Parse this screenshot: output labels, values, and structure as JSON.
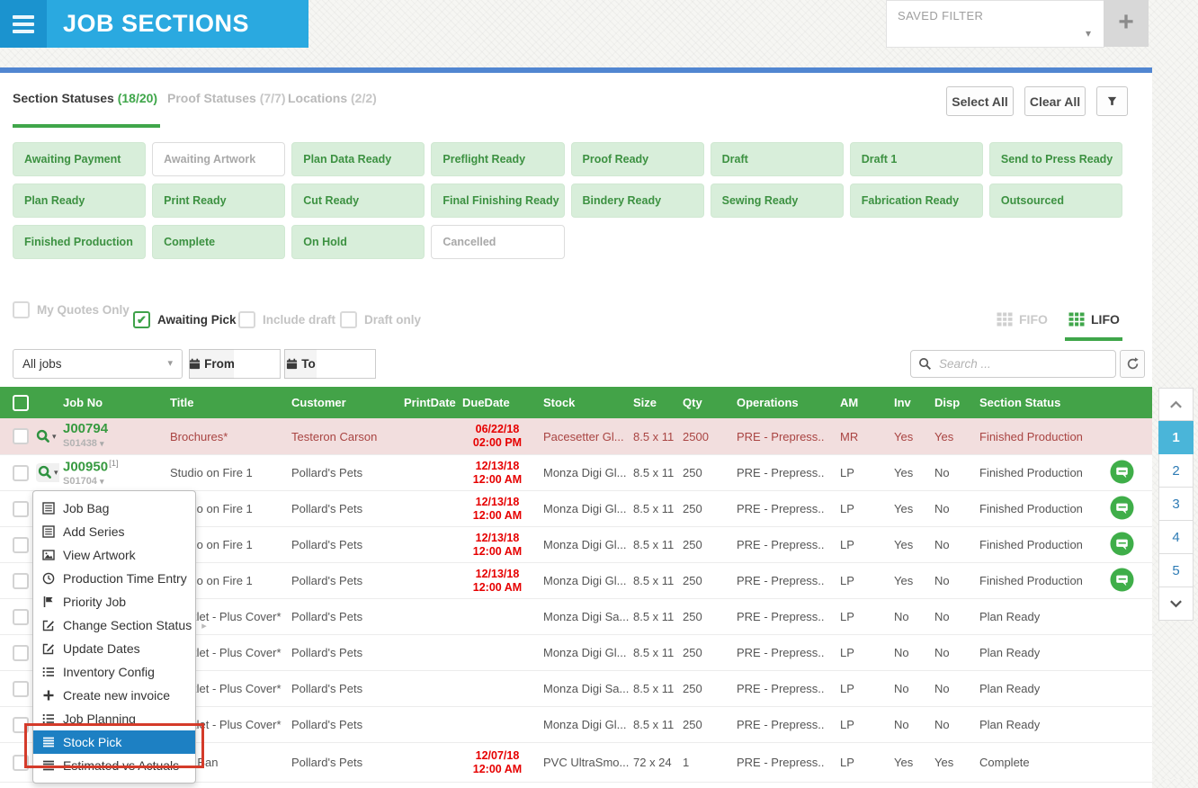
{
  "header": {
    "title": "JOB SECTIONS",
    "saved_filter_label": "SAVED FILTER",
    "add_filter": "+"
  },
  "filter_panel": {
    "tabs": [
      {
        "label": "Section Statuses",
        "count": "(18/20)",
        "active": true
      },
      {
        "label": "Proof Statuses",
        "count": "(7/7)",
        "active": false
      },
      {
        "label": "Locations",
        "count": "(2/2)",
        "active": false
      }
    ],
    "select_all": "Select All",
    "clear_all": "Clear All",
    "chips": [
      {
        "label": "Awaiting Payment",
        "selected": true
      },
      {
        "label": "Awaiting Artwork",
        "selected": false
      },
      {
        "label": "Plan Data Ready",
        "selected": true
      },
      {
        "label": "Preflight Ready",
        "selected": true
      },
      {
        "label": "Proof Ready",
        "selected": true
      },
      {
        "label": "Draft",
        "selected": true
      },
      {
        "label": "Draft 1",
        "selected": true
      },
      {
        "label": "Send to Press Ready",
        "selected": true
      },
      {
        "label": "Plan Ready",
        "selected": true
      },
      {
        "label": "Print Ready",
        "selected": true
      },
      {
        "label": "Cut Ready",
        "selected": true
      },
      {
        "label": "Final Finishing Ready",
        "selected": true
      },
      {
        "label": "Bindery Ready",
        "selected": true
      },
      {
        "label": "Sewing Ready",
        "selected": true
      },
      {
        "label": "Fabrication Ready",
        "selected": true
      },
      {
        "label": "Outsourced",
        "selected": true
      },
      {
        "label": "Finished Production",
        "selected": true
      },
      {
        "label": "Complete",
        "selected": true
      },
      {
        "label": "On Hold",
        "selected": true
      },
      {
        "label": "Cancelled",
        "selected": false
      }
    ]
  },
  "options": {
    "checkboxes": [
      {
        "label": "My Quotes Only",
        "checked": false
      },
      {
        "label": "Awaiting Pick",
        "checked": true
      },
      {
        "label": "Include draft",
        "checked": false
      },
      {
        "label": "Draft only",
        "checked": false
      }
    ],
    "order": [
      {
        "label": "FIFO",
        "active": false
      },
      {
        "label": "LIFO",
        "active": true
      }
    ]
  },
  "filter_bar": {
    "jobs_select": "All jobs",
    "from_label": "From",
    "to_label": "To",
    "search_placeholder": "Search ..."
  },
  "table": {
    "columns": [
      "",
      "",
      "Job No",
      "Title",
      "Customer",
      "PrintDate",
      "DueDate",
      "Stock",
      "Size",
      "Qty",
      "Operations",
      "AM",
      "Inv",
      "Disp",
      "Section Status",
      ""
    ],
    "rows": [
      {
        "show_job": true,
        "job_no": "J00794",
        "badge": "",
        "section_no": "S01438",
        "title": "Brochures*",
        "customer": "Testeron Carson",
        "print_date": "",
        "due": [
          "06/22/18",
          "02:00 PM"
        ],
        "stock": "Pacesetter Gl...",
        "size": "8.5 x 11",
        "qty": "2500",
        "operations": "PRE - Prepress..",
        "am": "MR",
        "inv": "Yes",
        "disp": "Yes",
        "status": "Finished Production",
        "chat": false,
        "overdue": true,
        "partial": false,
        "tall": false
      },
      {
        "show_job": true,
        "job_no": "J00950",
        "badge": "[1]",
        "section_no": "S01704",
        "title": "Studio on Fire 1",
        "customer": "Pollard's Pets",
        "print_date": "",
        "due": [
          "12/13/18",
          "12:00 AM"
        ],
        "stock": "Monza Digi Gl...",
        "size": "8.5 x 11",
        "qty": "250",
        "operations": "PRE - Prepress..",
        "am": "LP",
        "inv": "Yes",
        "disp": "No",
        "status": "Finished Production",
        "chat": true,
        "overdue": false,
        "partial": false,
        "tall": false
      },
      {
        "show_job": false,
        "job_no": "",
        "badge": "",
        "section_no": "",
        "title": "Studio on Fire 1",
        "customer": "Pollard's Pets",
        "print_date": "",
        "due": [
          "12/13/18",
          "12:00 AM"
        ],
        "stock": "Monza Digi Gl...",
        "size": "8.5 x 11",
        "qty": "250",
        "operations": "PRE - Prepress..",
        "am": "LP",
        "inv": "Yes",
        "disp": "No",
        "status": "Finished Production",
        "chat": true,
        "overdue": false,
        "partial": false,
        "tall": false
      },
      {
        "show_job": false,
        "job_no": "",
        "badge": "",
        "section_no": "",
        "title": "Studio on Fire 1",
        "customer": "Pollard's Pets",
        "print_date": "",
        "due": [
          "12/13/18",
          "12:00 AM"
        ],
        "stock": "Monza Digi Gl...",
        "size": "8.5 x 11",
        "qty": "250",
        "operations": "PRE - Prepress..",
        "am": "LP",
        "inv": "Yes",
        "disp": "No",
        "status": "Finished Production",
        "chat": true,
        "overdue": false,
        "partial": false,
        "tall": false
      },
      {
        "show_job": false,
        "job_no": "",
        "badge": "",
        "section_no": "",
        "title": "Studio on Fire 1",
        "customer": "Pollard's Pets",
        "print_date": "",
        "due": [
          "12/13/18",
          "12:00 AM"
        ],
        "stock": "Monza Digi Gl...",
        "size": "8.5 x 11",
        "qty": "250",
        "operations": "PRE - Prepress..",
        "am": "LP",
        "inv": "Yes",
        "disp": "No",
        "status": "Finished Production",
        "chat": true,
        "overdue": false,
        "partial": false,
        "tall": false
      },
      {
        "show_job": false,
        "job_no": "",
        "badge": "",
        "section_no": "",
        "title": "Booklet - Plus Cover*",
        "customer": "Pollard's Pets",
        "print_date": "",
        "due": [],
        "stock": "Monza Digi Sa...",
        "size": "8.5 x 11",
        "qty": "250",
        "operations": "PRE - Prepress..",
        "am": "LP",
        "inv": "No",
        "disp": "No",
        "status": "Plan Ready",
        "chat": false,
        "overdue": false,
        "partial": false,
        "tall": false
      },
      {
        "show_job": false,
        "job_no": "",
        "badge": "",
        "section_no": "",
        "title": "Booklet - Plus Cover*",
        "customer": "Pollard's Pets",
        "print_date": "",
        "due": [],
        "stock": "Monza Digi Gl...",
        "size": "8.5 x 11",
        "qty": "250",
        "operations": "PRE - Prepress..",
        "am": "LP",
        "inv": "No",
        "disp": "No",
        "status": "Plan Ready",
        "chat": false,
        "overdue": false,
        "partial": false,
        "tall": false
      },
      {
        "show_job": false,
        "job_no": "",
        "badge": "",
        "section_no": "",
        "title": "Booklet - Plus Cover*",
        "customer": "Pollard's Pets",
        "print_date": "",
        "due": [],
        "stock": "Monza Digi Sa...",
        "size": "8.5 x 11",
        "qty": "250",
        "operations": "PRE - Prepress..",
        "am": "LP",
        "inv": "No",
        "disp": "No",
        "status": "Plan Ready",
        "chat": false,
        "overdue": false,
        "partial": false,
        "tall": false
      },
      {
        "show_job": false,
        "job_no": "",
        "badge": "",
        "section_no": "",
        "title": "Booklet - Plus Cover*",
        "customer": "Pollard's Pets",
        "print_date": "",
        "due": [],
        "stock": "Monza Digi Gl...",
        "size": "8.5 x 11",
        "qty": "250",
        "operations": "PRE - Prepress..",
        "am": "LP",
        "inv": "No",
        "disp": "No",
        "status": "Plan Ready",
        "chat": false,
        "overdue": false,
        "partial": false,
        "tall": false
      },
      {
        "show_job": false,
        "job_no": "",
        "badge": "",
        "section_no": "",
        "title": "PVC Ban",
        "customer": "Pollard's Pets",
        "print_date": "",
        "due": [
          "12/07/18",
          "12:00 AM"
        ],
        "stock": "PVC UltraSmo...",
        "size": "72 x 24",
        "qty": "1",
        "operations": "PRE - Prepress..",
        "am": "LP",
        "inv": "Yes",
        "disp": "Yes",
        "status": "Complete",
        "chat": false,
        "overdue": false,
        "partial": false,
        "tall": true
      },
      {
        "show_job": false,
        "job_no": "",
        "badge": "",
        "section_no": "",
        "title": "",
        "customer": "",
        "print_date": "",
        "due": [],
        "stock": "",
        "size": "",
        "qty": "",
        "operations": "",
        "am": "",
        "inv": "",
        "disp": "",
        "status": "",
        "chat": false,
        "overdue": false,
        "partial": true,
        "tall": false
      }
    ]
  },
  "context_menu": {
    "items": [
      {
        "label": "Job Bag",
        "icon": "list-box",
        "highlighted": false,
        "submenu": false
      },
      {
        "label": "Add Series",
        "icon": "list-box",
        "highlighted": false,
        "submenu": false
      },
      {
        "label": "View Artwork",
        "icon": "image",
        "highlighted": false,
        "submenu": false
      },
      {
        "label": "Production Time Entry",
        "icon": "clock",
        "highlighted": false,
        "submenu": false
      },
      {
        "label": "Priority Job",
        "icon": "flag",
        "highlighted": false,
        "submenu": false
      },
      {
        "label": "Change Section Status",
        "icon": "edit",
        "highlighted": false,
        "submenu": true
      },
      {
        "label": "Update Dates",
        "icon": "edit",
        "highlighted": false,
        "submenu": false
      },
      {
        "label": "Inventory Config",
        "icon": "list",
        "highlighted": false,
        "submenu": false
      },
      {
        "label": "Create new invoice",
        "icon": "plus",
        "highlighted": false,
        "submenu": false
      },
      {
        "label": "Job Planning",
        "icon": "list",
        "highlighted": false,
        "submenu": false
      },
      {
        "label": "Stock Pick",
        "icon": "justify",
        "highlighted": true,
        "submenu": false
      },
      {
        "label": "Estimated vs Actuals",
        "icon": "justify",
        "highlighted": false,
        "submenu": false
      }
    ]
  },
  "pagination": {
    "pages": [
      "1",
      "2",
      "3",
      "4",
      "5"
    ],
    "active_page": "1"
  },
  "colors": {
    "topbar_blue": "#2aa9e0",
    "hamburger_blue": "#1b93cf",
    "divider_blue": "#5186d1",
    "accent_green": "#3fa64a",
    "chip_green_bg": "#d8eeda",
    "chip_green_text": "#3c9141",
    "table_header_green": "#43a348",
    "overdue_row_bg": "#f2dede",
    "overdue_text": "#a94442",
    "due_date_red": "#e60000",
    "menu_highlight_blue": "#1d80c3",
    "annotation_red": "#d43b2a",
    "pagination_active_blue": "#4ab5d9"
  }
}
